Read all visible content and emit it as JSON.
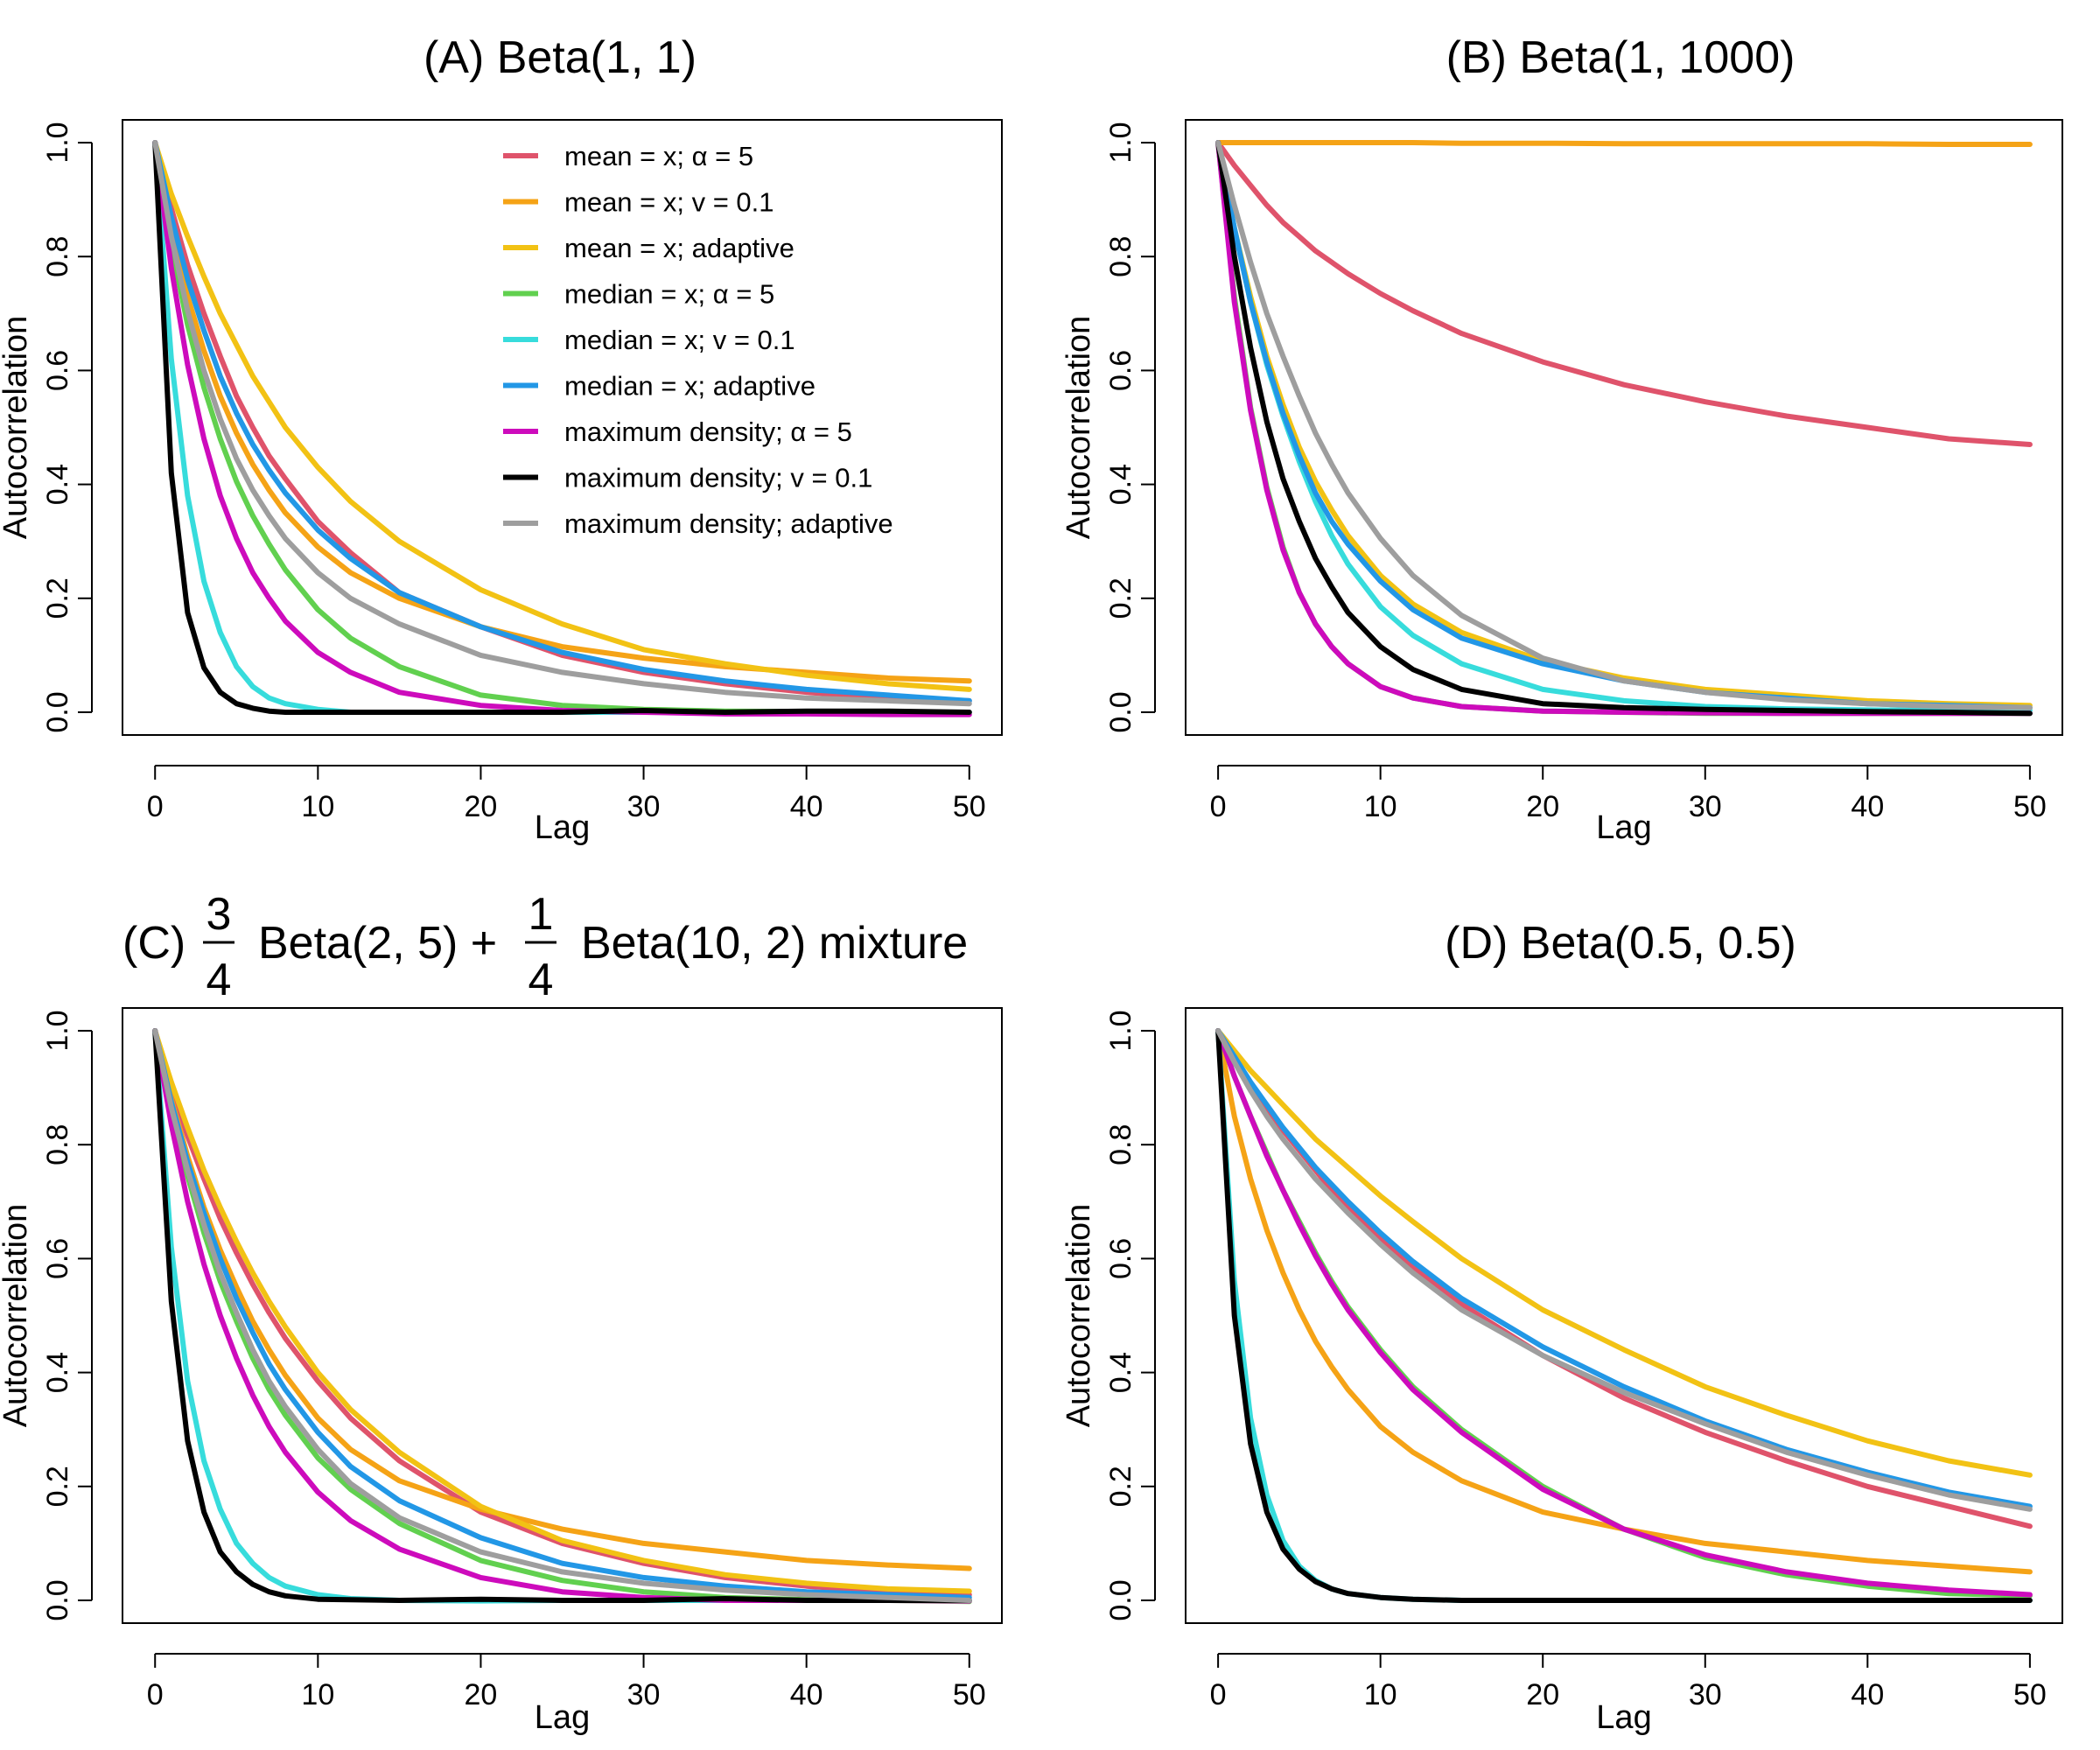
{
  "colors": {
    "mean_alpha5": "#DF536B",
    "mean_v01": "#F5A316",
    "mean_adaptive": "#F2C214",
    "median_alpha5": "#61D04F",
    "median_v01": "#37DCDC",
    "median_adaptive": "#2297E6",
    "maxdens_alpha5": "#CD0BBC",
    "maxdens_v01": "#000000",
    "maxdens_adaptive": "#9E9E9E"
  },
  "legend": [
    {
      "key": "mean_alpha5",
      "label": "mean = x; α = 5"
    },
    {
      "key": "mean_v01",
      "label": "mean = x; v = 0.1"
    },
    {
      "key": "mean_adaptive",
      "label": "mean = x; adaptive"
    },
    {
      "key": "median_alpha5",
      "label": "median = x; α = 5"
    },
    {
      "key": "median_v01",
      "label": "median = x; v = 0.1"
    },
    {
      "key": "median_adaptive",
      "label": "median = x; adaptive"
    },
    {
      "key": "maxdens_alpha5",
      "label": "maximum density; α = 5"
    },
    {
      "key": "maxdens_v01",
      "label": "maximum density; v = 0.1"
    },
    {
      "key": "maxdens_adaptive",
      "label": "maximum density; adaptive"
    }
  ],
  "chart_data": [
    {
      "id": "A",
      "type": "line",
      "title": "(A) Beta(1, 1)",
      "xlabel": "Lag",
      "ylabel": "Autocorrelation",
      "xlim": [
        0,
        50
      ],
      "ylim": [
        0,
        1
      ],
      "xticks": [
        0,
        10,
        20,
        30,
        40,
        50
      ],
      "yticks": [
        0.0,
        0.2,
        0.4,
        0.6,
        0.8,
        1.0
      ],
      "x": [
        0,
        1,
        2,
        3,
        4,
        5,
        6,
        7,
        8,
        10,
        12,
        15,
        20,
        25,
        30,
        35,
        40,
        45,
        50
      ],
      "series": [
        {
          "key": "mean_alpha5",
          "values": [
            1,
            0.885,
            0.785,
            0.7,
            0.625,
            0.555,
            0.5,
            0.45,
            0.41,
            0.335,
            0.28,
            0.21,
            0.15,
            0.1,
            0.07,
            0.05,
            0.035,
            0.025,
            0.02
          ]
        },
        {
          "key": "mean_v01",
          "values": [
            1,
            0.85,
            0.73,
            0.635,
            0.555,
            0.49,
            0.435,
            0.39,
            0.35,
            0.29,
            0.245,
            0.2,
            0.15,
            0.115,
            0.095,
            0.08,
            0.07,
            0.06,
            0.055
          ]
        },
        {
          "key": "mean_adaptive",
          "values": [
            1,
            0.91,
            0.835,
            0.765,
            0.7,
            0.645,
            0.59,
            0.545,
            0.5,
            0.43,
            0.37,
            0.3,
            0.215,
            0.155,
            0.11,
            0.085,
            0.065,
            0.05,
            0.04
          ]
        },
        {
          "key": "median_alpha5",
          "values": [
            1,
            0.82,
            0.68,
            0.57,
            0.48,
            0.405,
            0.345,
            0.295,
            0.25,
            0.18,
            0.13,
            0.08,
            0.03,
            0.012,
            0.005,
            0.002,
            0.001,
            0.0,
            0.0
          ]
        },
        {
          "key": "median_v01",
          "values": [
            1,
            0.62,
            0.38,
            0.23,
            0.14,
            0.08,
            0.045,
            0.025,
            0.015,
            0.005,
            0.0,
            0.0,
            0.0,
            0.0,
            0.0,
            0.0,
            0.0,
            0.0,
            0.0
          ]
        },
        {
          "key": "median_adaptive",
          "values": [
            1,
            0.87,
            0.76,
            0.67,
            0.59,
            0.525,
            0.47,
            0.425,
            0.385,
            0.32,
            0.27,
            0.21,
            0.15,
            0.105,
            0.075,
            0.055,
            0.04,
            0.03,
            0.02
          ]
        },
        {
          "key": "maxdens_alpha5",
          "values": [
            1,
            0.78,
            0.61,
            0.48,
            0.38,
            0.305,
            0.245,
            0.2,
            0.16,
            0.105,
            0.07,
            0.035,
            0.012,
            0.003,
            0.0,
            -0.003,
            -0.003,
            -0.004,
            -0.004
          ]
        },
        {
          "key": "maxdens_v01",
          "values": [
            1,
            0.42,
            0.175,
            0.078,
            0.035,
            0.015,
            0.007,
            0.002,
            0.0,
            0.0,
            0.0,
            0.0,
            0.0,
            0.0,
            0.003,
            0.0,
            0.002,
            0.002,
            0.0
          ]
        },
        {
          "key": "maxdens_adaptive",
          "values": [
            1,
            0.835,
            0.705,
            0.6,
            0.515,
            0.445,
            0.39,
            0.345,
            0.305,
            0.245,
            0.2,
            0.155,
            0.1,
            0.07,
            0.05,
            0.035,
            0.025,
            0.02,
            0.015
          ]
        }
      ]
    },
    {
      "id": "B",
      "type": "line",
      "title": "(B) Beta(1, 1000)",
      "xlabel": "Lag",
      "ylabel": "Autocorrelation",
      "xlim": [
        0,
        50
      ],
      "ylim": [
        0,
        1
      ],
      "xticks": [
        0,
        10,
        20,
        30,
        40,
        50
      ],
      "yticks": [
        0.0,
        0.2,
        0.4,
        0.6,
        0.8,
        1.0
      ],
      "x": [
        0,
        1,
        2,
        3,
        4,
        5,
        6,
        7,
        8,
        10,
        12,
        15,
        20,
        25,
        30,
        35,
        40,
        45,
        50
      ],
      "series": [
        {
          "key": "mean_alpha5",
          "values": [
            1,
            0.96,
            0.925,
            0.89,
            0.86,
            0.835,
            0.81,
            0.79,
            0.77,
            0.735,
            0.705,
            0.665,
            0.615,
            0.575,
            0.545,
            0.52,
            0.5,
            0.48,
            0.47
          ]
        },
        {
          "key": "mean_v01",
          "values": [
            1,
            1.0,
            1.0,
            1.0,
            1.0,
            1.0,
            1.0,
            1.0,
            1.0,
            1.0,
            1.0,
            0.999,
            0.999,
            0.998,
            0.998,
            0.998,
            0.998,
            0.997,
            0.997
          ]
        },
        {
          "key": "mean_adaptive",
          "values": [
            1,
            0.85,
            0.73,
            0.625,
            0.54,
            0.465,
            0.405,
            0.355,
            0.31,
            0.24,
            0.19,
            0.14,
            0.09,
            0.06,
            0.04,
            0.03,
            0.02,
            0.015,
            0.012
          ]
        },
        {
          "key": "median_alpha5",
          "values": [
            1,
            0.73,
            0.535,
            0.395,
            0.29,
            0.21,
            0.155,
            0.115,
            0.085,
            0.045,
            0.025,
            0.01,
            0.002,
            0.0,
            -0.002,
            -0.002,
            -0.002,
            -0.002,
            -0.002
          ]
        },
        {
          "key": "median_v01",
          "values": [
            1,
            0.85,
            0.72,
            0.61,
            0.52,
            0.44,
            0.37,
            0.31,
            0.26,
            0.185,
            0.135,
            0.085,
            0.04,
            0.02,
            0.01,
            0.006,
            0.004,
            0.003,
            0.003
          ]
        },
        {
          "key": "median_adaptive",
          "values": [
            1,
            0.85,
            0.72,
            0.615,
            0.525,
            0.45,
            0.385,
            0.335,
            0.295,
            0.23,
            0.18,
            0.13,
            0.085,
            0.055,
            0.035,
            0.025,
            0.015,
            0.012,
            0.008
          ]
        },
        {
          "key": "maxdens_alpha5",
          "values": [
            1,
            0.72,
            0.53,
            0.39,
            0.285,
            0.21,
            0.155,
            0.115,
            0.085,
            0.045,
            0.025,
            0.01,
            0.002,
            0.0,
            -0.001,
            -0.002,
            -0.002,
            -0.002,
            -0.002
          ]
        },
        {
          "key": "maxdens_v01",
          "values": [
            1,
            0.8,
            0.64,
            0.51,
            0.41,
            0.335,
            0.27,
            0.22,
            0.175,
            0.115,
            0.075,
            0.04,
            0.015,
            0.008,
            0.005,
            0.003,
            0.001,
            0.0,
            -0.002
          ]
        },
        {
          "key": "maxdens_adaptive",
          "values": [
            1,
            0.89,
            0.79,
            0.7,
            0.625,
            0.555,
            0.49,
            0.435,
            0.385,
            0.305,
            0.24,
            0.17,
            0.095,
            0.055,
            0.035,
            0.022,
            0.015,
            0.01,
            0.008
          ]
        }
      ]
    },
    {
      "id": "C",
      "type": "line",
      "title_prefix": "(C)",
      "title_frac1_num": "3",
      "title_frac1_den": "4",
      "title_mid": "Beta(2, 5) +",
      "title_frac2_num": "1",
      "title_frac2_den": "4",
      "title_suffix": "Beta(10, 2) mixture",
      "xlabel": "Lag",
      "ylabel": "Autocorrelation",
      "xlim": [
        0,
        50
      ],
      "ylim": [
        0,
        1
      ],
      "xticks": [
        0,
        10,
        20,
        30,
        40,
        50
      ],
      "yticks": [
        0.0,
        0.2,
        0.4,
        0.6,
        0.8,
        1.0
      ],
      "x": [
        0,
        1,
        2,
        3,
        4,
        5,
        6,
        7,
        8,
        10,
        12,
        15,
        20,
        25,
        30,
        35,
        40,
        45,
        50
      ],
      "series": [
        {
          "key": "mean_alpha5",
          "values": [
            1,
            0.9,
            0.815,
            0.74,
            0.67,
            0.61,
            0.555,
            0.505,
            0.46,
            0.385,
            0.32,
            0.245,
            0.155,
            0.1,
            0.065,
            0.04,
            0.025,
            0.015,
            0.01
          ]
        },
        {
          "key": "mean_v01",
          "values": [
            1,
            0.88,
            0.78,
            0.69,
            0.615,
            0.55,
            0.49,
            0.44,
            0.395,
            0.32,
            0.265,
            0.21,
            0.16,
            0.125,
            0.1,
            0.085,
            0.07,
            0.062,
            0.056
          ]
        },
        {
          "key": "mean_adaptive",
          "values": [
            1,
            0.91,
            0.83,
            0.755,
            0.69,
            0.63,
            0.575,
            0.525,
            0.48,
            0.4,
            0.335,
            0.26,
            0.165,
            0.105,
            0.07,
            0.045,
            0.03,
            0.02,
            0.016
          ]
        },
        {
          "key": "median_alpha5",
          "values": [
            1,
            0.86,
            0.745,
            0.645,
            0.56,
            0.49,
            0.425,
            0.37,
            0.325,
            0.25,
            0.195,
            0.135,
            0.07,
            0.035,
            0.015,
            0.005,
            0.001,
            0.0,
            -0.002
          ]
        },
        {
          "key": "median_v01",
          "values": [
            1,
            0.62,
            0.385,
            0.245,
            0.16,
            0.1,
            0.065,
            0.04,
            0.025,
            0.01,
            0.003,
            0.0,
            -0.001,
            0.0,
            0.0,
            0.0,
            0.0,
            0.0,
            0.0
          ]
        },
        {
          "key": "median_adaptive",
          "values": [
            1,
            0.875,
            0.77,
            0.68,
            0.6,
            0.53,
            0.47,
            0.415,
            0.37,
            0.295,
            0.235,
            0.175,
            0.11,
            0.065,
            0.04,
            0.025,
            0.015,
            0.01,
            0.005
          ]
        },
        {
          "key": "maxdens_alpha5",
          "values": [
            1,
            0.835,
            0.7,
            0.59,
            0.5,
            0.425,
            0.36,
            0.305,
            0.26,
            0.19,
            0.14,
            0.09,
            0.04,
            0.015,
            0.005,
            0.0,
            0.0,
            0.0,
            -0.001
          ]
        },
        {
          "key": "maxdens_v01",
          "values": [
            1,
            0.525,
            0.28,
            0.155,
            0.085,
            0.05,
            0.028,
            0.015,
            0.008,
            0.002,
            0.001,
            0.0,
            0.002,
            0.0,
            0.0,
            0.003,
            0.0,
            0.0,
            0.0
          ]
        },
        {
          "key": "maxdens_adaptive",
          "values": [
            1,
            0.865,
            0.755,
            0.66,
            0.575,
            0.505,
            0.44,
            0.385,
            0.34,
            0.265,
            0.205,
            0.145,
            0.085,
            0.05,
            0.03,
            0.018,
            0.01,
            0.005,
            0.0
          ]
        }
      ]
    },
    {
      "id": "D",
      "type": "line",
      "title": "(D) Beta(0.5, 0.5)",
      "xlabel": "Lag",
      "ylabel": "Autocorrelation",
      "xlim": [
        0,
        50
      ],
      "ylim": [
        0,
        1
      ],
      "xticks": [
        0,
        10,
        20,
        30,
        40,
        50
      ],
      "yticks": [
        0.0,
        0.2,
        0.4,
        0.6,
        0.8,
        1.0
      ],
      "x": [
        0,
        1,
        2,
        3,
        4,
        5,
        6,
        7,
        8,
        10,
        12,
        15,
        20,
        25,
        30,
        35,
        40,
        45,
        50
      ],
      "series": [
        {
          "key": "mean_alpha5",
          "values": [
            1,
            0.95,
            0.905,
            0.865,
            0.825,
            0.79,
            0.755,
            0.72,
            0.69,
            0.635,
            0.585,
            0.52,
            0.43,
            0.355,
            0.295,
            0.245,
            0.2,
            0.165,
            0.13
          ]
        },
        {
          "key": "mean_v01",
          "values": [
            1,
            0.85,
            0.74,
            0.65,
            0.575,
            0.51,
            0.455,
            0.41,
            0.37,
            0.305,
            0.26,
            0.21,
            0.155,
            0.125,
            0.1,
            0.085,
            0.07,
            0.06,
            0.05
          ]
        },
        {
          "key": "mean_adaptive",
          "values": [
            1,
            0.965,
            0.93,
            0.9,
            0.87,
            0.84,
            0.81,
            0.785,
            0.76,
            0.71,
            0.665,
            0.6,
            0.51,
            0.44,
            0.375,
            0.325,
            0.28,
            0.245,
            0.22
          ]
        },
        {
          "key": "median_alpha5",
          "values": [
            1,
            0.92,
            0.85,
            0.785,
            0.72,
            0.665,
            0.61,
            0.56,
            0.515,
            0.44,
            0.375,
            0.3,
            0.2,
            0.125,
            0.075,
            0.045,
            0.025,
            0.012,
            0.008
          ]
        },
        {
          "key": "median_v01",
          "values": [
            1,
            0.56,
            0.32,
            0.185,
            0.105,
            0.06,
            0.035,
            0.02,
            0.012,
            0.005,
            0.002,
            0.0,
            0.0,
            0.0,
            0.0,
            0.0,
            0.0,
            0.0,
            0.0
          ]
        },
        {
          "key": "median_adaptive",
          "values": [
            1,
            0.955,
            0.91,
            0.87,
            0.83,
            0.795,
            0.76,
            0.73,
            0.7,
            0.645,
            0.595,
            0.53,
            0.445,
            0.375,
            0.315,
            0.265,
            0.225,
            0.19,
            0.165
          ]
        },
        {
          "key": "maxdens_alpha5",
          "values": [
            1,
            0.92,
            0.85,
            0.78,
            0.72,
            0.66,
            0.605,
            0.555,
            0.51,
            0.435,
            0.37,
            0.295,
            0.195,
            0.125,
            0.08,
            0.05,
            0.03,
            0.018,
            0.01
          ]
        },
        {
          "key": "maxdens_v01",
          "values": [
            1,
            0.5,
            0.275,
            0.155,
            0.09,
            0.055,
            0.033,
            0.02,
            0.012,
            0.005,
            0.002,
            0.0,
            0.0,
            0.0,
            0.0,
            0.0,
            0.0,
            0.0,
            0.0
          ]
        },
        {
          "key": "maxdens_adaptive",
          "values": [
            1,
            0.945,
            0.895,
            0.85,
            0.81,
            0.775,
            0.74,
            0.71,
            0.68,
            0.625,
            0.575,
            0.51,
            0.43,
            0.365,
            0.31,
            0.26,
            0.22,
            0.185,
            0.16
          ]
        }
      ]
    }
  ]
}
